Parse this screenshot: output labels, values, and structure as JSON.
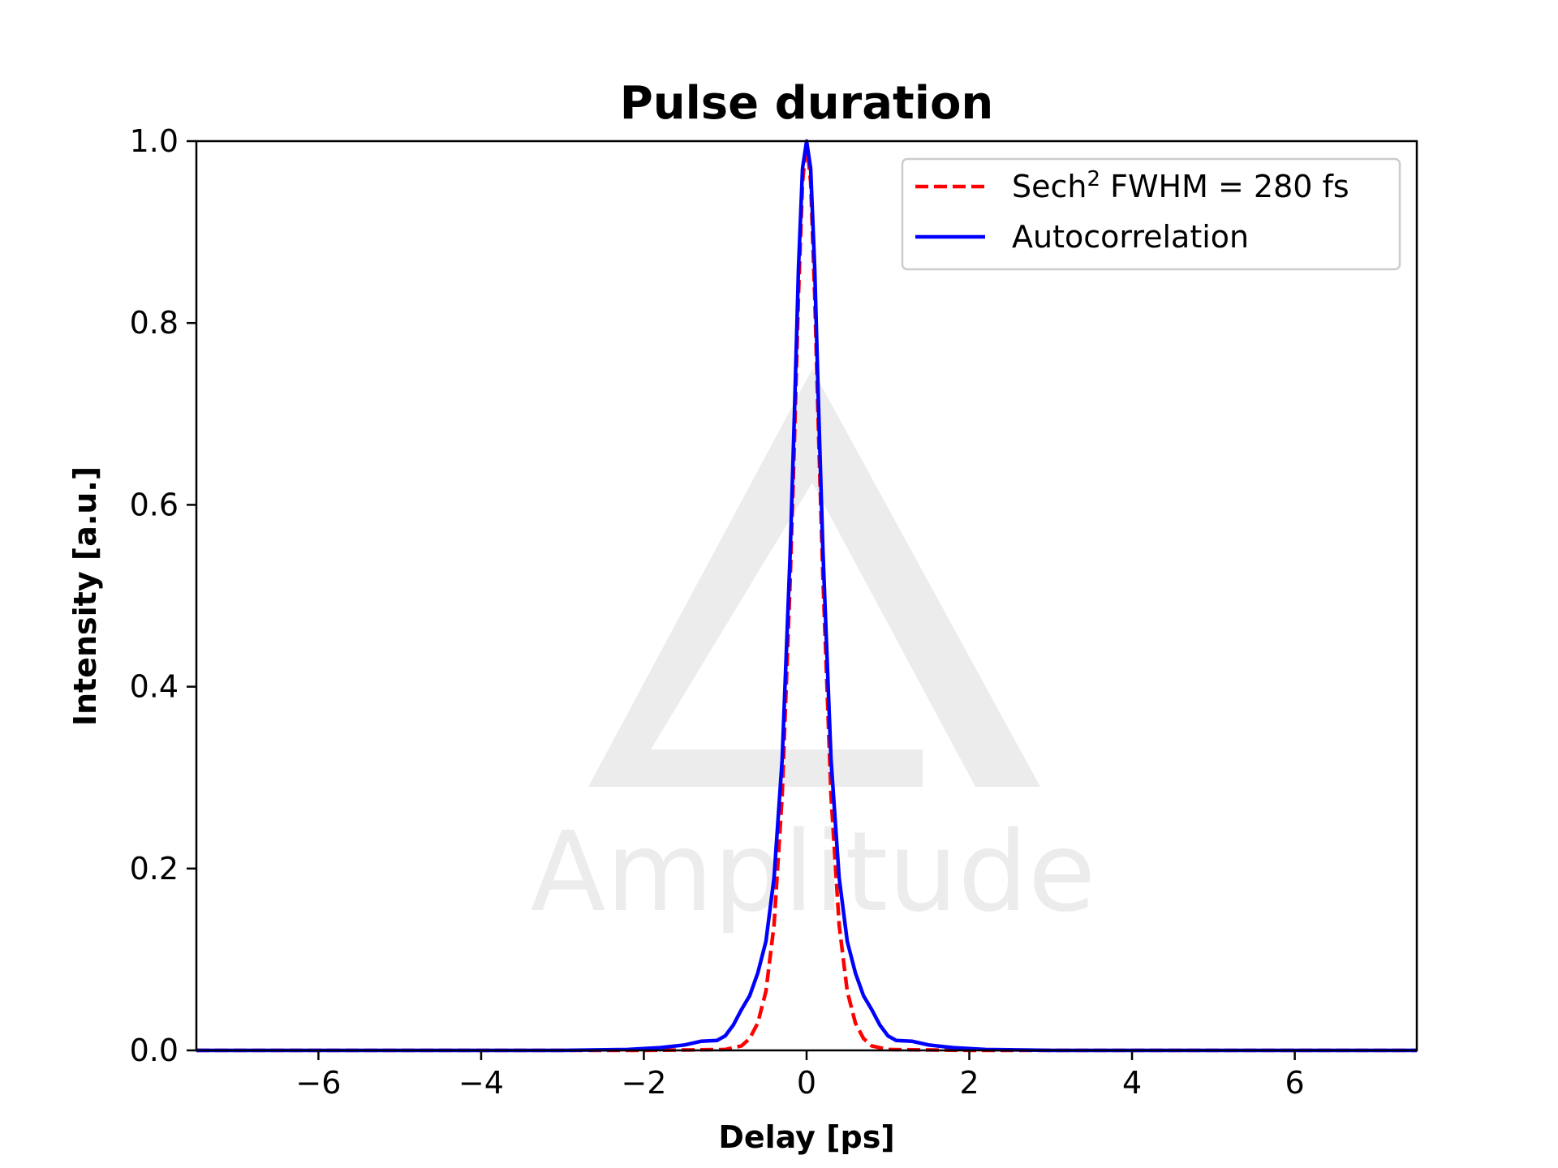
{
  "chart_data": {
    "type": "line",
    "title": "Pulse duration",
    "xlabel": "Delay [ps]",
    "ylabel": "Intensity [a.u.]",
    "xlim": [
      -7.5,
      7.5
    ],
    "ylim": [
      0.0,
      1.0
    ],
    "x_ticks": [
      -6,
      -4,
      -2,
      0,
      2,
      4,
      6
    ],
    "x_tick_labels": [
      "−6",
      "−4",
      "−2",
      "0",
      "2",
      "4",
      "6"
    ],
    "y_ticks": [
      0.0,
      0.2,
      0.4,
      0.6,
      0.8,
      1.0
    ],
    "y_tick_labels": [
      "0.0",
      "0.2",
      "0.4",
      "0.6",
      "0.8",
      "1.0"
    ],
    "grid": false,
    "legend_position": "top-right",
    "series": [
      {
        "name": "Sech² FWHM = 280 fs",
        "name_base": "Sech",
        "name_sup": "2",
        "name_rest": " FWHM = 280 fs",
        "color": "#ff0000",
        "style": "dashed",
        "x": [
          -7.5,
          -2.0,
          -1.0,
          -0.8,
          -0.7,
          -0.6,
          -0.5,
          -0.4,
          -0.3,
          -0.2,
          -0.15,
          -0.1,
          -0.05,
          0.0,
          0.05,
          0.1,
          0.15,
          0.2,
          0.3,
          0.4,
          0.5,
          0.6,
          0.7,
          0.8,
          1.0,
          2.0,
          7.5
        ],
        "y": [
          0.0,
          0.0,
          0.001,
          0.005,
          0.013,
          0.03,
          0.065,
          0.138,
          0.28,
          0.52,
          0.67,
          0.83,
          0.955,
          1.0,
          0.955,
          0.83,
          0.67,
          0.52,
          0.28,
          0.138,
          0.065,
          0.03,
          0.013,
          0.005,
          0.001,
          0.0,
          0.0
        ]
      },
      {
        "name": "Autocorrelation",
        "color": "#0000ff",
        "style": "solid",
        "x": [
          -7.5,
          -3.0,
          -2.2,
          -1.8,
          -1.5,
          -1.3,
          -1.1,
          -1.0,
          -0.9,
          -0.8,
          -0.7,
          -0.6,
          -0.5,
          -0.4,
          -0.3,
          -0.2,
          -0.15,
          -0.1,
          -0.05,
          0.0,
          0.05,
          0.1,
          0.15,
          0.2,
          0.3,
          0.4,
          0.5,
          0.6,
          0.7,
          0.8,
          0.9,
          1.0,
          1.1,
          1.3,
          1.5,
          1.8,
          2.2,
          3.0,
          7.5
        ],
        "y": [
          0.0,
          0.0,
          0.001,
          0.003,
          0.006,
          0.01,
          0.011,
          0.016,
          0.028,
          0.045,
          0.06,
          0.085,
          0.12,
          0.19,
          0.32,
          0.55,
          0.7,
          0.86,
          0.97,
          1.0,
          0.97,
          0.86,
          0.7,
          0.55,
          0.32,
          0.19,
          0.12,
          0.085,
          0.06,
          0.045,
          0.028,
          0.016,
          0.011,
          0.01,
          0.006,
          0.003,
          0.001,
          0.0,
          0.0
        ]
      }
    ]
  },
  "watermark": {
    "text": "Amplitude",
    "color": "#ececec"
  }
}
